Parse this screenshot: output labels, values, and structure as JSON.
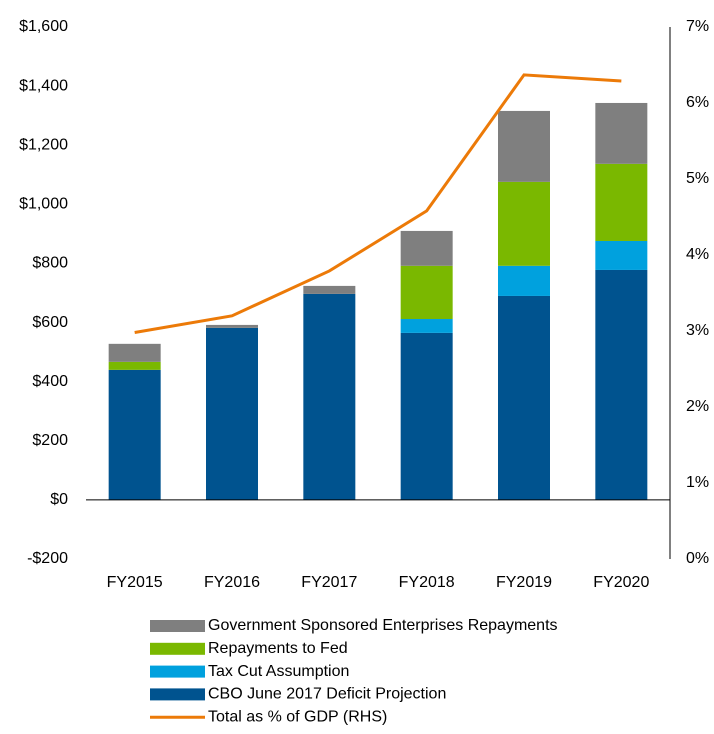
{
  "chart_data": {
    "type": "bar",
    "categories": [
      "FY2015",
      "FY2016",
      "FY2017",
      "FY2018",
      "FY2019",
      "FY2020"
    ],
    "series": [
      {
        "name": "CBO June 2017 Deficit Projection",
        "color": "#00538f",
        "values": [
          440,
          582,
          697,
          565,
          690,
          778
        ]
      },
      {
        "name": "Tax Cut Assumption",
        "color": "#00a1de",
        "values": [
          0,
          0,
          0,
          47,
          102,
          98
        ]
      },
      {
        "name": "Repayments to Fed",
        "color": "#7ab800",
        "values": [
          27,
          0,
          0,
          180,
          284,
          261
        ]
      },
      {
        "name": "Government Sponsored Enterprises Repayments",
        "color": "#7f7f7f",
        "values": [
          61,
          10,
          27,
          118,
          240,
          206
        ]
      },
      {
        "name": "Total as % of GDP (RHS)",
        "color": "#ec7a08",
        "type": "line",
        "axis": "y2",
        "values": [
          2.98,
          3.2,
          3.79,
          4.58,
          6.37,
          6.29
        ]
      }
    ],
    "stacked": true,
    "ylim": [
      -200,
      1600
    ],
    "yticks": [
      {
        "value": -200,
        "label": "-$200"
      },
      {
        "value": 0,
        "label": "$0"
      },
      {
        "value": 200,
        "label": "$200"
      },
      {
        "value": 400,
        "label": "$400"
      },
      {
        "value": 600,
        "label": "$600"
      },
      {
        "value": 800,
        "label": "$800"
      },
      {
        "value": 1000,
        "label": "$1,000"
      },
      {
        "value": 1200,
        "label": "$1,200"
      },
      {
        "value": 1400,
        "label": "$1,400"
      },
      {
        "value": 1600,
        "label": "$1,600"
      }
    ],
    "y2lim": [
      0,
      7
    ],
    "y2ticks": [
      {
        "value": 0,
        "label": "0%"
      },
      {
        "value": 1,
        "label": "1%"
      },
      {
        "value": 2,
        "label": "2%"
      },
      {
        "value": 3,
        "label": "3%"
      },
      {
        "value": 4,
        "label": "4%"
      },
      {
        "value": 5,
        "label": "5%"
      },
      {
        "value": 6,
        "label": "6%"
      },
      {
        "value": 7,
        "label": "7%"
      }
    ],
    "grid": false,
    "legend": "bottom"
  }
}
